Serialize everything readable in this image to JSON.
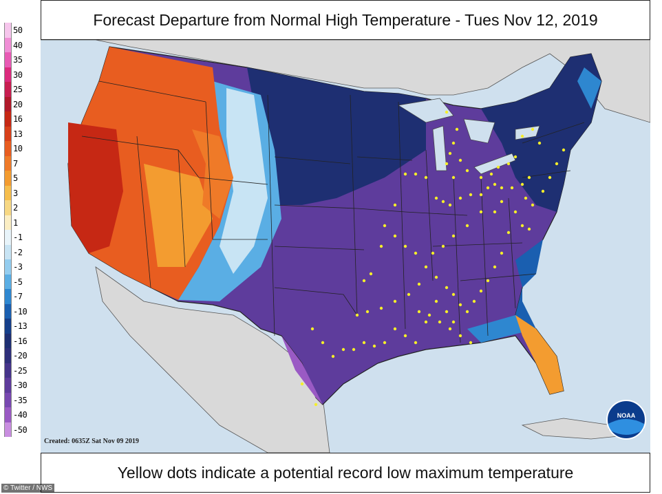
{
  "title": "Forecast Departure from Normal High Temperature - Tues Nov 12, 2019",
  "footer_note": "Yellow dots indicate a potential record low maximum temperature",
  "created_stamp": "Created: 0635Z Sat Nov 09 2019",
  "credit": "© Twitter / NWS",
  "logo_text": "NOAA",
  "legend": {
    "items": [
      {
        "label": "50",
        "color": "#f6c6ec"
      },
      {
        "label": "40",
        "color": "#f08fd6"
      },
      {
        "label": "35",
        "color": "#e85ab4"
      },
      {
        "label": "30",
        "color": "#dc2a7d"
      },
      {
        "label": "25",
        "color": "#c81e50"
      },
      {
        "label": "20",
        "color": "#b01a2a"
      },
      {
        "label": "16",
        "color": "#c62814"
      },
      {
        "label": "13",
        "color": "#d8401a"
      },
      {
        "label": "10",
        "color": "#e85d20"
      },
      {
        "label": "7",
        "color": "#ef7a28"
      },
      {
        "label": "5",
        "color": "#f39c30"
      },
      {
        "label": "3",
        "color": "#f6be4c"
      },
      {
        "label": "2",
        "color": "#f7d883"
      },
      {
        "label": "1",
        "color": "#fbeec4"
      },
      {
        "label": "-1",
        "color": "#e8f4fa"
      },
      {
        "label": "-2",
        "color": "#c8e4f4"
      },
      {
        "label": "-3",
        "color": "#94cdef"
      },
      {
        "label": "-5",
        "color": "#5aaee4"
      },
      {
        "label": "-7",
        "color": "#2e87d0"
      },
      {
        "label": "-10",
        "color": "#1a5fb0"
      },
      {
        "label": "-13",
        "color": "#153f8a"
      },
      {
        "label": "-16",
        "color": "#1e2f72"
      },
      {
        "label": "-20",
        "color": "#2e2f7a"
      },
      {
        "label": "-25",
        "color": "#45348a"
      },
      {
        "label": "-30",
        "color": "#5e3c9c"
      },
      {
        "label": "-35",
        "color": "#7848b0"
      },
      {
        "label": "-40",
        "color": "#9a5ac4"
      },
      {
        "label": "-50",
        "color": "#c98ee0"
      }
    ]
  },
  "record_low_max_sites_count_hint": "many"
}
